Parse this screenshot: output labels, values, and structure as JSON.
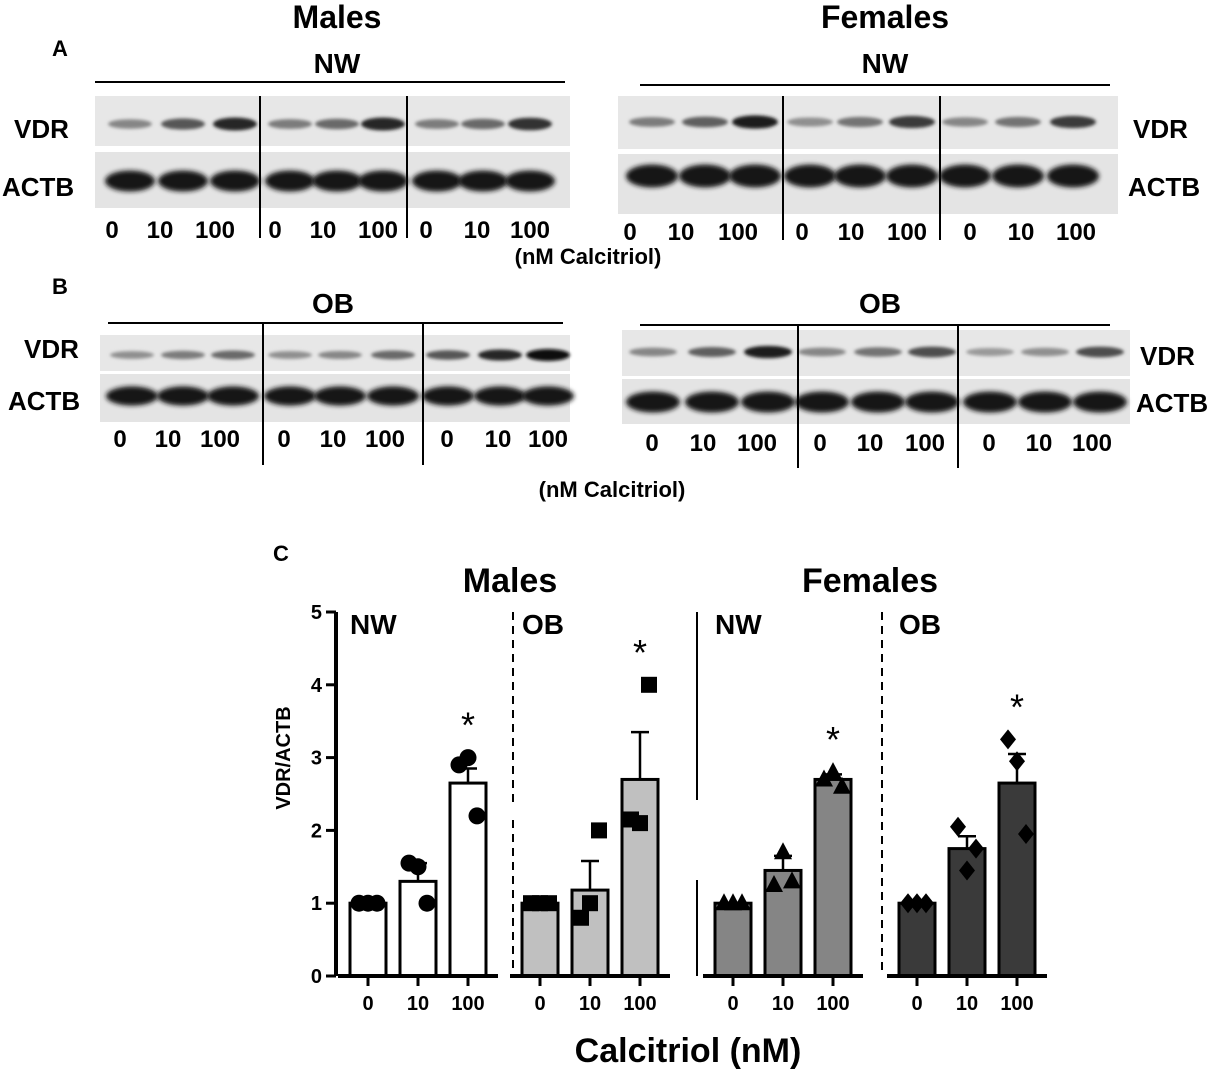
{
  "panel_a": {
    "letter": "A",
    "males_title": "Males",
    "females_title": "Females",
    "males_group": "NW",
    "females_group": "NW",
    "row_labels_left": [
      "VDR",
      "ACTB"
    ],
    "row_labels_right": [
      "VDR",
      "ACTB"
    ],
    "dose_labels": [
      "0",
      "10",
      "100"
    ],
    "unit_label": "(nM Calcitriol)"
  },
  "panel_b": {
    "letter": "B",
    "males_group": "OB",
    "females_group": "OB",
    "row_labels_left": [
      "VDR",
      "ACTB"
    ],
    "row_labels_right": [
      "VDR",
      "ACTB"
    ],
    "dose_labels": [
      "0",
      "10",
      "100"
    ],
    "unit_label": "(nM Calcitriol)"
  },
  "blot_intensity": {
    "a_males_vdr": [
      0.35,
      0.6,
      0.85,
      0.4,
      0.5,
      0.85,
      0.4,
      0.5,
      0.8
    ],
    "a_females_vdr": [
      0.4,
      0.55,
      0.9,
      0.3,
      0.45,
      0.75,
      0.35,
      0.45,
      0.75
    ],
    "b_males_vdr": [
      0.3,
      0.4,
      0.5,
      0.3,
      0.35,
      0.5,
      0.6,
      0.85,
      1.0
    ],
    "b_females_vdr": [
      0.35,
      0.55,
      0.9,
      0.35,
      0.45,
      0.65,
      0.25,
      0.3,
      0.65
    ]
  },
  "chart_data": {
    "type": "bar",
    "panel_letter": "C",
    "title_left": "Males",
    "title_right": "Females",
    "ylabel": "VDR/ACTB",
    "xlabel": "Calcitriol (nM)",
    "ylim": [
      0,
      5
    ],
    "yticks": [
      "0",
      "1",
      "2",
      "3",
      "4",
      "5"
    ],
    "categories": [
      "0",
      "10",
      "100"
    ],
    "groups": [
      {
        "label": "NW",
        "sex": "Males",
        "color": "#ffffff",
        "marker": "circle",
        "values": [
          1.0,
          1.3,
          2.65
        ],
        "errors": [
          0.0,
          0.25,
          0.2
        ],
        "points": [
          [
            1.0,
            1.0,
            1.0
          ],
          [
            1.55,
            1.5,
            1.0
          ],
          [
            2.9,
            3.0,
            2.2
          ]
        ],
        "significant": [
          false,
          false,
          true
        ]
      },
      {
        "label": "OB",
        "sex": "Males",
        "color": "#c0c0c0",
        "marker": "square",
        "values": [
          1.0,
          1.18,
          2.7
        ],
        "errors": [
          0.0,
          0.4,
          0.65
        ],
        "points": [
          [
            1.0,
            1.0,
            1.0
          ],
          [
            0.8,
            1.0,
            2.0
          ],
          [
            2.15,
            2.1,
            4.0
          ]
        ],
        "significant": [
          false,
          false,
          true
        ]
      },
      {
        "label": "NW",
        "sex": "Females",
        "color": "#858585",
        "marker": "triangle",
        "values": [
          1.0,
          1.45,
          2.7
        ],
        "errors": [
          0.0,
          0.2,
          0.07
        ],
        "points": [
          [
            1.0,
            1.0,
            1.0
          ],
          [
            1.25,
            1.7,
            1.3
          ],
          [
            2.7,
            2.8,
            2.6
          ]
        ],
        "significant": [
          false,
          false,
          true
        ]
      },
      {
        "label": "OB",
        "sex": "Females",
        "color": "#3a3a3a",
        "marker": "diamond",
        "values": [
          1.0,
          1.75,
          2.65
        ],
        "errors": [
          0.0,
          0.17,
          0.4
        ],
        "points": [
          [
            1.0,
            1.0,
            1.0
          ],
          [
            2.05,
            1.45,
            1.75
          ],
          [
            3.25,
            2.95,
            1.95
          ]
        ],
        "significant": [
          false,
          false,
          true
        ]
      }
    ],
    "significance_marker": "*",
    "grid": false,
    "legend": "none"
  }
}
